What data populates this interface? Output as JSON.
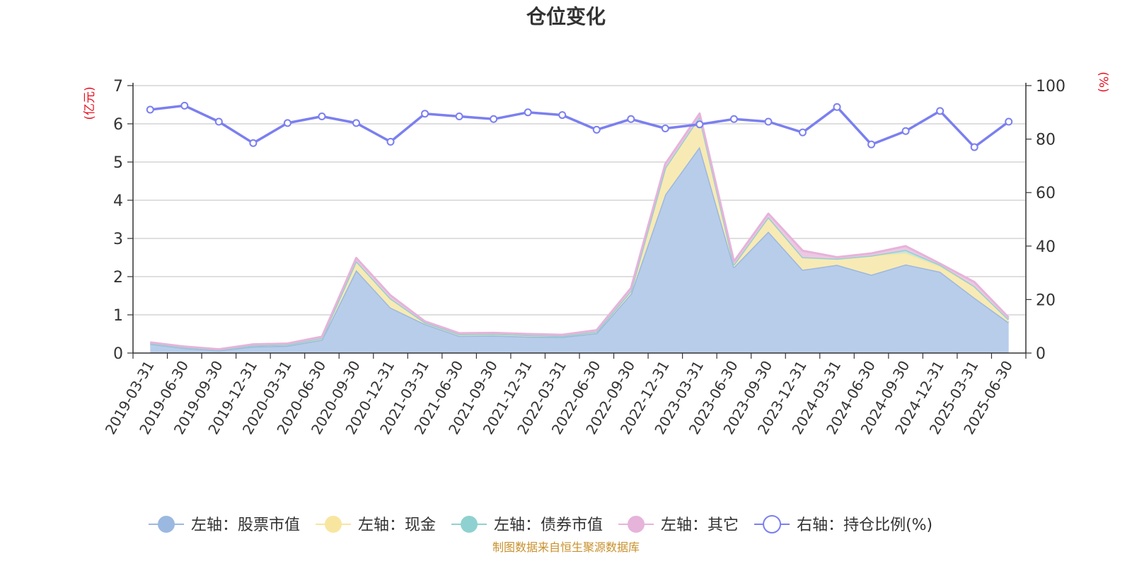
{
  "chart_data": {
    "type": "area",
    "title": "仓位变化",
    "left_axis_unit": "(亿元)",
    "right_axis_unit": "(%)",
    "left_ylim": [
      0,
      7
    ],
    "left_ticks": [
      "0",
      "1",
      "2",
      "3",
      "4",
      "5",
      "6",
      "7"
    ],
    "right_ylim": [
      0,
      100
    ],
    "right_ticks": [
      "0",
      "20",
      "40",
      "60",
      "80",
      "100"
    ],
    "grid": true,
    "legend_position": "bottom",
    "categories": [
      "2019-03-31",
      "2019-06-30",
      "2019-09-30",
      "2019-12-31",
      "2020-03-31",
      "2020-06-30",
      "2020-09-30",
      "2020-12-31",
      "2021-03-31",
      "2021-06-30",
      "2021-09-30",
      "2021-12-31",
      "2022-03-31",
      "2022-06-30",
      "2022-09-30",
      "2022-12-31",
      "2023-03-31",
      "2023-06-30",
      "2023-09-30",
      "2023-12-31",
      "2024-03-31",
      "2024-06-30",
      "2024-09-30",
      "2024-12-31",
      "2025-03-31",
      "2025-06-30"
    ],
    "series": [
      {
        "name": "左轴：股票市值",
        "axis": "left",
        "kind": "stacked-area",
        "color": "#9bb8e0",
        "fill": "#b8cdea",
        "values": [
          0.24,
          0.13,
          0.07,
          0.17,
          0.19,
          0.35,
          2.17,
          1.19,
          0.76,
          0.45,
          0.46,
          0.43,
          0.42,
          0.52,
          1.55,
          4.15,
          5.4,
          2.25,
          3.18,
          2.18,
          2.31,
          2.05,
          2.32,
          2.13,
          1.45,
          0.8
        ]
      },
      {
        "name": "左轴：现金",
        "axis": "left",
        "kind": "stacked-area",
        "color": "#f8e6a0",
        "fill": "#f8eab4",
        "values": [
          0.02,
          0.02,
          0.02,
          0.03,
          0.03,
          0.04,
          0.24,
          0.24,
          0.04,
          0.04,
          0.04,
          0.04,
          0.03,
          0.04,
          0.08,
          0.7,
          0.79,
          0.07,
          0.38,
          0.33,
          0.16,
          0.5,
          0.3,
          0.14,
          0.3,
          0.08
        ]
      },
      {
        "name": "左轴：债券市值",
        "axis": "left",
        "kind": "stacked-area",
        "color": "#8fd1d0",
        "fill": "#bfe6e4",
        "values": [
          0,
          0,
          0,
          0,
          0,
          0,
          0,
          0,
          0,
          0,
          0,
          0,
          0,
          0,
          0,
          0,
          0,
          0,
          0,
          0,
          0,
          0,
          0.08,
          0.04,
          0,
          0
        ]
      },
      {
        "name": "左轴：其它",
        "axis": "left",
        "kind": "stacked-area",
        "color": "#e6b3da",
        "fill": "#eec7e2",
        "values": [
          0.02,
          0.02,
          0.01,
          0.03,
          0.03,
          0.04,
          0.08,
          0.08,
          0.03,
          0.03,
          0.03,
          0.03,
          0.03,
          0.04,
          0.07,
          0.1,
          0.08,
          0.08,
          0.09,
          0.17,
          0.04,
          0.06,
          0.1,
          0.03,
          0.11,
          0.05
        ]
      },
      {
        "name": "右轴：持仓比例(%)",
        "axis": "right",
        "kind": "line",
        "color": "#7b7ff0",
        "values": [
          91,
          92.5,
          86.5,
          78.5,
          86,
          88.5,
          86,
          79,
          89.5,
          88.5,
          87.5,
          90,
          89,
          83.5,
          87.5,
          84,
          85.5,
          87.5,
          86.5,
          82.5,
          92,
          78,
          83,
          90.5,
          77,
          86.5
        ]
      }
    ],
    "source_note": "制图数据来自恒生聚源数据库"
  }
}
